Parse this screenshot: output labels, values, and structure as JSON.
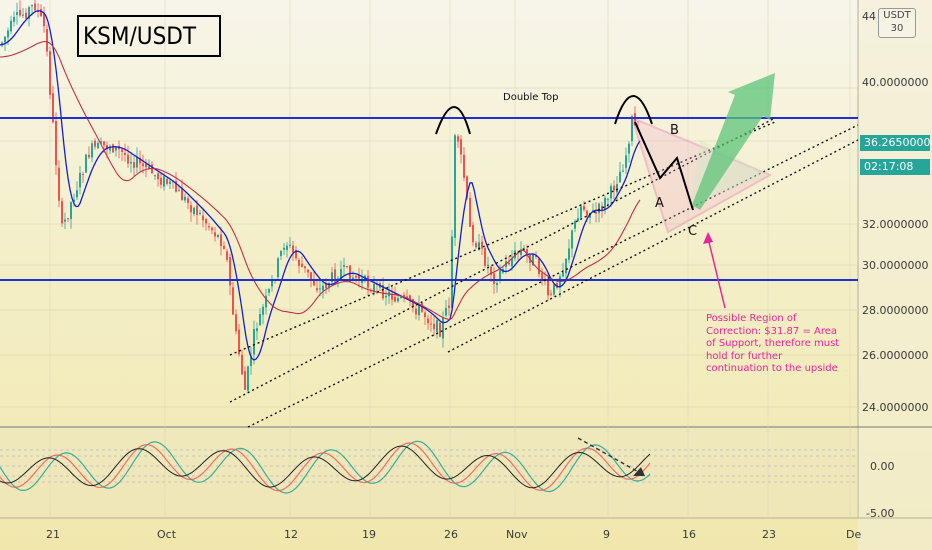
{
  "symbol": "KSM/USDT",
  "currency_badge": {
    "line1": "USDT",
    "line2": "30"
  },
  "price_axis": {
    "labels": [
      "44",
      "40.0000000",
      "36.2650000",
      "32.0000000",
      "30.0000000",
      "28.0000000",
      "26.0000000",
      "24.0000000"
    ],
    "current_price": "36.2650000",
    "countdown": "02:17:08"
  },
  "oscillator_axis": {
    "labels": [
      "0.00",
      "-5.00"
    ]
  },
  "time_axis": {
    "labels": [
      "21",
      "Oct",
      "12",
      "19",
      "26",
      "Nov",
      "9",
      "16",
      "23",
      "De"
    ]
  },
  "annotations": {
    "double_top": "Double Top",
    "wave_a": "A",
    "wave_b": "B",
    "wave_c": "C",
    "correction_note": "Possible Region of Correction: $31.87 = Area of Support, therefore must hold for further continuation to the upside"
  },
  "colors": {
    "resistance_line": "#1f2fd6",
    "support_line": "#1f2fd6",
    "ma_fast": "#1520c8",
    "ma_slow": "#c0304a",
    "bull_candle": "#26a69a",
    "bear_candle": "#ef5350",
    "correction": "#e6279b",
    "projection_arrow": "#5cc47a",
    "price_tag": "#26a69a",
    "countdown_tag": "#26a69a"
  }
}
